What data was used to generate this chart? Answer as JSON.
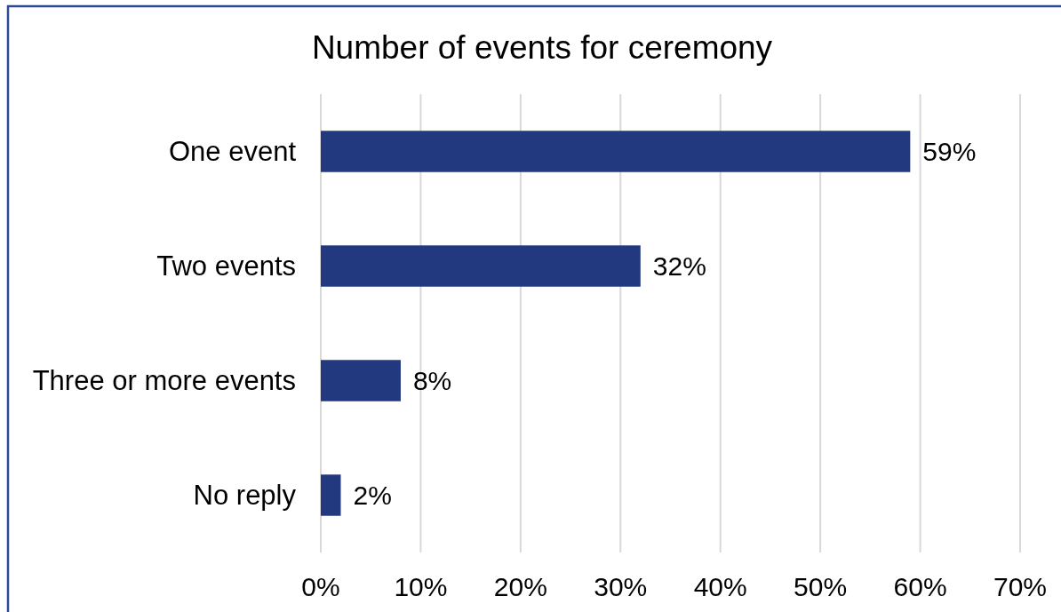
{
  "chart_data": {
    "type": "bar",
    "orientation": "horizontal",
    "title": "Number of events for ceremony",
    "categories": [
      "One event",
      "Two events",
      "Three or more events",
      "No reply"
    ],
    "values": [
      59,
      32,
      8,
      2
    ],
    "color": "#22387f",
    "value_labels": [
      "59%",
      "32%",
      "8%",
      "2%"
    ],
    "xlim": [
      0,
      70
    ],
    "xticks": [
      {
        "value": 0,
        "label": "0%"
      },
      {
        "value": 10,
        "label": "10%"
      },
      {
        "value": 20,
        "label": "20%"
      },
      {
        "value": 30,
        "label": "30%"
      },
      {
        "value": 40,
        "label": "40%"
      },
      {
        "value": 50,
        "label": "50%"
      },
      {
        "value": 60,
        "label": "60%"
      },
      {
        "value": 70,
        "label": "70%"
      }
    ],
    "grid": "x"
  }
}
